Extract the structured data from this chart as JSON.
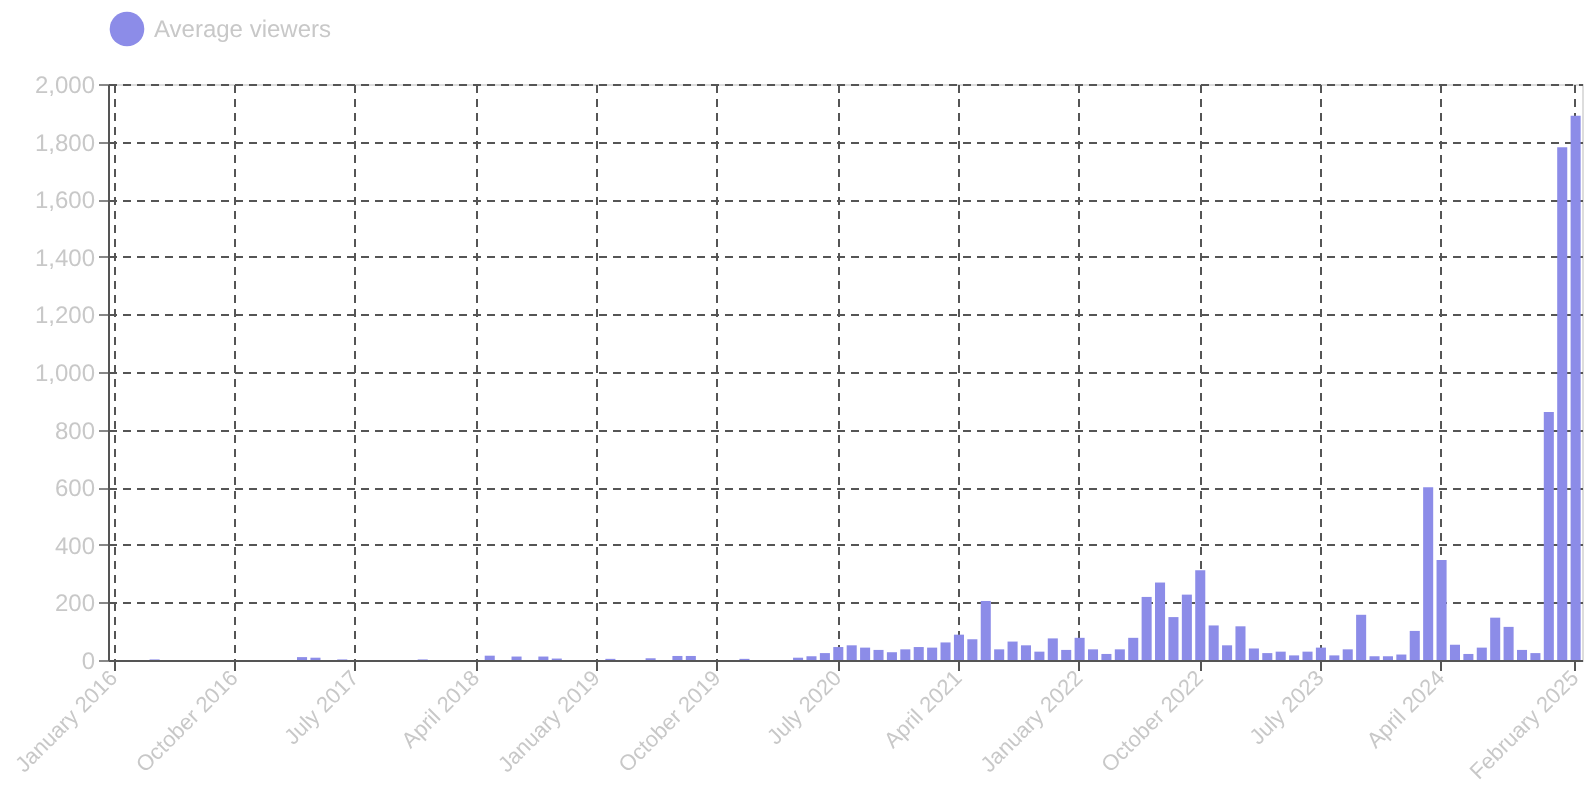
{
  "chart_data": {
    "type": "bar",
    "categories": [
      "January 2016",
      null,
      null,
      null,
      null,
      null,
      null,
      null,
      null,
      "October 2016",
      null,
      null,
      null,
      null,
      null,
      null,
      null,
      null,
      "July 2017",
      null,
      null,
      null,
      null,
      null,
      null,
      null,
      null,
      "April 2018",
      null,
      null,
      null,
      null,
      null,
      null,
      null,
      null,
      "January 2019",
      null,
      null,
      null,
      null,
      null,
      null,
      null,
      null,
      "October 2019",
      null,
      null,
      null,
      null,
      null,
      null,
      null,
      null,
      "July 2020",
      null,
      null,
      null,
      null,
      null,
      null,
      null,
      null,
      "April 2021",
      null,
      null,
      null,
      null,
      null,
      null,
      null,
      null,
      "January 2022",
      null,
      null,
      null,
      null,
      null,
      null,
      null,
      null,
      "October 2022",
      null,
      null,
      null,
      null,
      null,
      null,
      null,
      null,
      "July 2023",
      null,
      null,
      null,
      null,
      null,
      null,
      null,
      null,
      "April 2024",
      null,
      null,
      null,
      null,
      null,
      null,
      null,
      null,
      null,
      "February 2025"
    ],
    "series": [
      {
        "name": "Average viewers",
        "color": "#8c8ce8",
        "values": [
          0,
          0,
          0,
          2,
          0,
          0,
          0,
          0,
          0,
          0,
          0,
          0,
          0,
          0,
          10,
          8,
          0,
          2,
          0,
          0,
          0,
          0,
          0,
          2,
          0,
          0,
          0,
          0,
          15,
          0,
          12,
          0,
          12,
          5,
          0,
          0,
          0,
          4,
          0,
          0,
          6,
          0,
          14,
          14,
          0,
          0,
          0,
          4,
          0,
          0,
          0,
          8,
          13,
          24,
          45,
          51,
          43,
          35,
          27,
          37,
          45,
          43,
          61,
          88,
          72,
          205,
          37,
          64,
          51,
          29,
          75,
          35,
          77,
          37,
          21,
          37,
          77,
          219,
          269,
          149,
          227,
          312,
          120,
          51,
          117,
          40,
          24,
          29,
          16,
          29,
          43,
          16,
          37,
          157,
          13,
          13,
          19,
          101,
          600,
          347,
          53,
          21,
          43,
          147,
          115,
          35,
          24,
          861,
          1780,
          1890
        ]
      }
    ],
    "ylim": [
      0,
      2000
    ],
    "yticks": [
      0,
      200,
      400,
      600,
      800,
      {
        "value": 1000,
        "label": "1,000"
      },
      {
        "value": 1200,
        "label": "1,200"
      },
      {
        "value": 1400,
        "label": "1,400"
      },
      {
        "value": 1600,
        "label": "1,600"
      },
      {
        "value": 1800,
        "label": "1,800"
      },
      {
        "value": 2000,
        "label": "2,000"
      }
    ],
    "grid": true,
    "legend": "top"
  }
}
